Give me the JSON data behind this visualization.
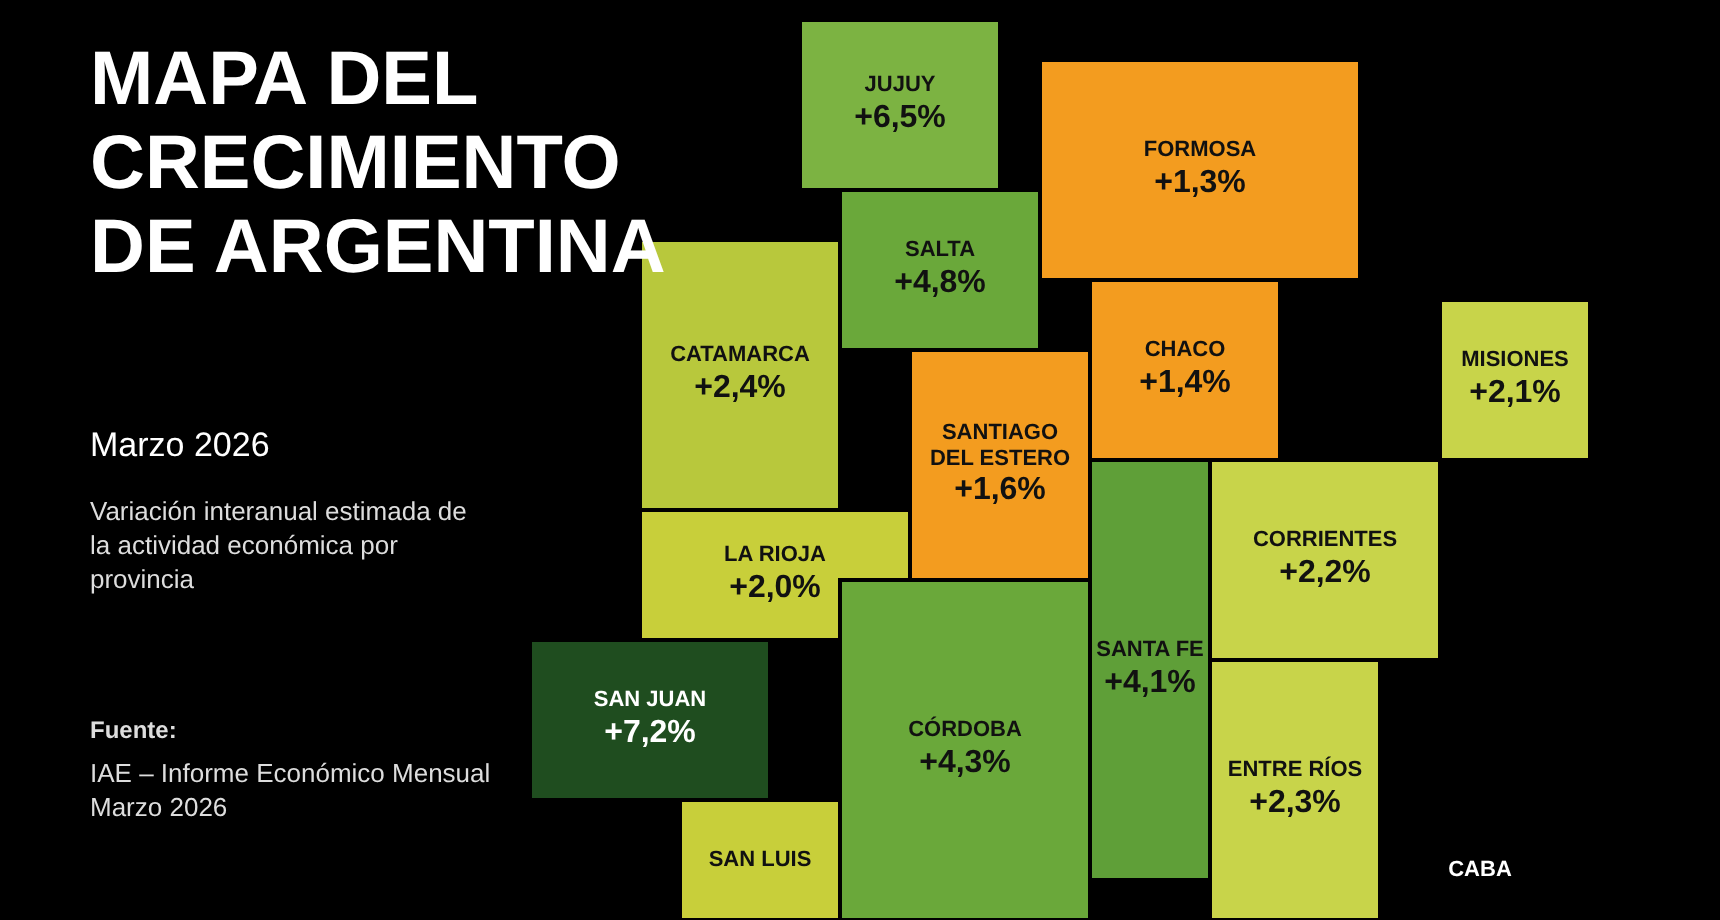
{
  "chart_data": {
    "type": "other",
    "title": "MAPA DEL CRECIMIENTO DE ARGENTINA",
    "subtitle": "Marzo 2026",
    "annotations": [
      "Variación interanual estimada de la actividad económica por provincia",
      "Fuente:",
      "IAE – Informe Económico Mensual Marzo 2026"
    ],
    "categories": [
      "JUJUY",
      "SALTA",
      "FORMOSA",
      "CHACO",
      "MISIONES",
      "CATAMARCA",
      "SANTIAGO DEL ESTERO",
      "LA RIOJA",
      "CORRIENTES",
      "SAN JUAN",
      "SANTA FE",
      "CÓRDOBA",
      "ENTRE RÍOS",
      "SAN LUIS",
      "CABA"
    ],
    "values": [
      6.5,
      4.8,
      1.3,
      1.4,
      2.1,
      2.4,
      1.6,
      2.0,
      2.2,
      7.2,
      4.1,
      4.3,
      2.3,
      null,
      null
    ],
    "value_labels": [
      "+6,5%",
      "+4,8%",
      "+1,3%",
      "+1,4%",
      "+2,1%",
      "+2,4%",
      "+1,6%",
      "+2,0%",
      "+2,2%",
      "+7,2%",
      "+4,1%",
      "+4,3%",
      "+2,3%",
      null,
      null
    ],
    "colors": [
      "#7cb342",
      "#6aa83a",
      "#f39c1f",
      "#f39c1f",
      "#c8d44a",
      "#b8c83c",
      "#f39c1f",
      "#c8cf3a",
      "#c8d44a",
      "#1f4d1f",
      "#5f9f38",
      "#6aa83a",
      "#c8d44a",
      "#c8cf3a",
      "#000000"
    ]
  }
}
